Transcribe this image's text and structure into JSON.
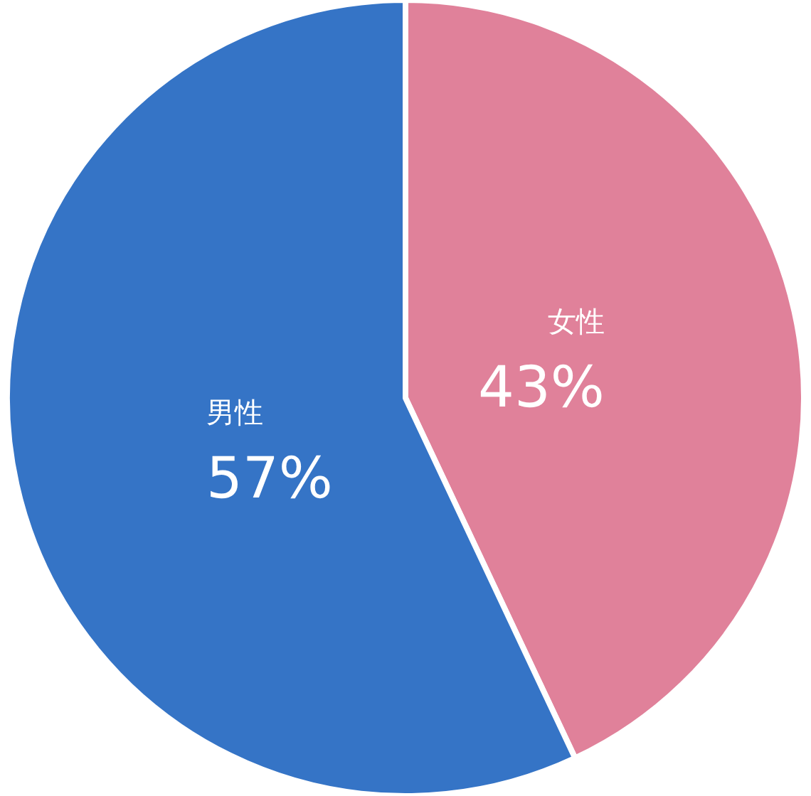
{
  "chart_data": {
    "type": "pie",
    "categories": [
      "女性",
      "男性"
    ],
    "values": [
      43,
      57
    ],
    "colors": [
      "#e0819a",
      "#3574c6"
    ],
    "value_labels": [
      "43%",
      "57%"
    ],
    "legend": false
  }
}
